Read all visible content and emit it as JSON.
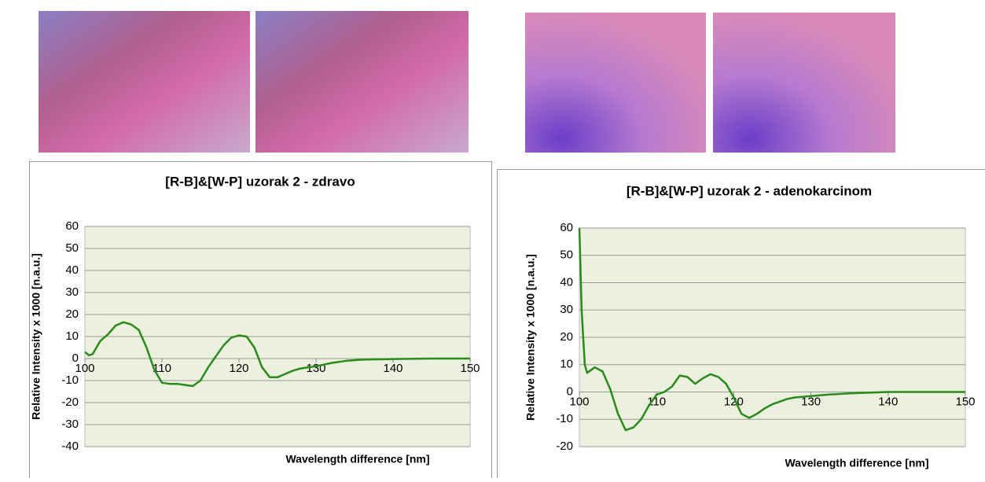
{
  "chart_data": [
    {
      "type": "line",
      "title": "[R-B]&[W-P]  uzorak 2 - zdravo",
      "xlabel": "Wavelength difference [nm]",
      "ylabel": "Relative Intensity x 1000 [n.a.u.]",
      "x": [
        100,
        100.5,
        101,
        102,
        103,
        104,
        105,
        106,
        107,
        108,
        109,
        110,
        111,
        112,
        113,
        114,
        115,
        116,
        117,
        118,
        119,
        120,
        121,
        122,
        123,
        124,
        125,
        126,
        127,
        128,
        129,
        130,
        132,
        134,
        136,
        140,
        145,
        150
      ],
      "values": [
        3,
        1.5,
        2,
        8,
        11,
        15,
        16.5,
        15.5,
        13,
        5,
        -5,
        -11,
        -11.5,
        -11.5,
        -12,
        -12.5,
        -10,
        -4,
        1,
        6,
        9.5,
        10.5,
        10,
        5,
        -4,
        -8.5,
        -8.5,
        -7,
        -5.5,
        -4.5,
        -4,
        -3.5,
        -2,
        -1,
        -0.5,
        -0.2,
        0,
        0
      ],
      "color": "#2a8a1c",
      "background": "#ebf1de",
      "grid": true,
      "xlim": [
        100,
        150
      ],
      "xticks": [
        100,
        110,
        120,
        130,
        140,
        150
      ],
      "ylim": [
        -40,
        60
      ],
      "yticks": [
        -40,
        -30,
        -20,
        -10,
        0,
        10,
        20,
        30,
        40,
        50,
        60
      ]
    },
    {
      "type": "line",
      "title": "[R-B]&[W-P]  uzorak 2 - adenokarcinom",
      "xlabel": "Wavelength difference [nm]",
      "ylabel": "Relative Intensity x 1000 [n.a.u.]",
      "x": [
        100,
        100.3,
        100.7,
        101,
        102,
        103,
        104,
        105,
        106,
        107,
        108,
        109,
        110,
        111,
        112,
        113,
        114,
        115,
        116,
        117,
        118,
        119,
        120,
        121,
        122,
        123,
        124,
        125,
        126,
        127,
        128,
        130,
        132,
        135,
        140,
        150
      ],
      "values": [
        60,
        30,
        10,
        7,
        9,
        7.5,
        1,
        -8,
        -14,
        -13,
        -10,
        -5,
        -1,
        0,
        2,
        6,
        5.5,
        3,
        5,
        6.5,
        5.5,
        3,
        -2,
        -8,
        -9.5,
        -8,
        -6,
        -4.5,
        -3.5,
        -2.5,
        -2,
        -1.5,
        -1,
        -0.5,
        0,
        0
      ],
      "color": "#2a8a1c",
      "background": "#ebf1de",
      "grid": true,
      "xlim": [
        100,
        150
      ],
      "xticks": [
        100,
        110,
        120,
        130,
        140,
        150
      ],
      "ylim": [
        -20,
        60
      ],
      "yticks": [
        -20,
        -10,
        0,
        10,
        20,
        30,
        40,
        50,
        60
      ]
    }
  ]
}
